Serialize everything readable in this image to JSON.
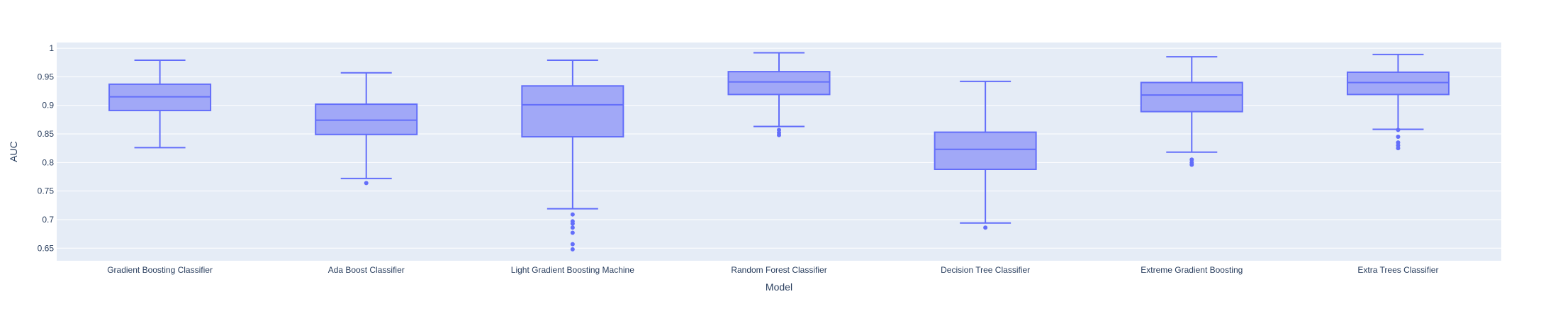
{
  "chart_data": {
    "type": "box",
    "title": "",
    "xlabel": "Model",
    "ylabel": "AUC",
    "ylim": [
      0.628,
      1.01
    ],
    "yticks": [
      0.65,
      0.7,
      0.75,
      0.8,
      0.85,
      0.9,
      0.95,
      1
    ],
    "ytick_labels": [
      "0.65",
      "0.7",
      "0.75",
      "0.8",
      "0.85",
      "0.9",
      "0.95",
      "1"
    ],
    "grid": true,
    "legend": "none",
    "colors": {
      "plot_bg": "#E5ECF6",
      "grid": "#FFFFFF",
      "box_line": "#636EFA",
      "box_fill": "#A1A8F7",
      "text": "#2A3F5F"
    },
    "categories": [
      "Gradient Boosting Classifier",
      "Ada Boost Classifier",
      "Light Gradient Boosting Machine",
      "Random Forest Classifier",
      "Decision Tree Classifier",
      "Extreme Gradient Boosting",
      "Extra Trees Classifier"
    ],
    "boxes": [
      {
        "name": "Gradient Boosting Classifier",
        "min": 0.826,
        "q1": 0.891,
        "median": 0.915,
        "q3": 0.937,
        "max": 0.979,
        "outliers": []
      },
      {
        "name": "Ada Boost Classifier",
        "min": 0.772,
        "q1": 0.849,
        "median": 0.874,
        "q3": 0.902,
        "max": 0.957,
        "outliers": [
          0.764
        ]
      },
      {
        "name": "Light Gradient Boosting Machine",
        "min": 0.719,
        "q1": 0.845,
        "median": 0.901,
        "q3": 0.934,
        "max": 0.979,
        "outliers": [
          0.709,
          0.697,
          0.693,
          0.686,
          0.677,
          0.657,
          0.648
        ]
      },
      {
        "name": "Random Forest Classifier",
        "min": 0.863,
        "q1": 0.919,
        "median": 0.941,
        "q3": 0.959,
        "max": 0.992,
        "outliers": [
          0.857,
          0.852,
          0.848
        ]
      },
      {
        "name": "Decision Tree Classifier",
        "min": 0.694,
        "q1": 0.788,
        "median": 0.823,
        "q3": 0.853,
        "max": 0.942,
        "outliers": [
          0.686
        ]
      },
      {
        "name": "Extreme Gradient Boosting",
        "min": 0.818,
        "q1": 0.889,
        "median": 0.918,
        "q3": 0.94,
        "max": 0.985,
        "outliers": [
          0.805,
          0.8,
          0.796
        ]
      },
      {
        "name": "Extra Trees Classifier",
        "min": 0.858,
        "q1": 0.919,
        "median": 0.94,
        "q3": 0.958,
        "max": 0.989,
        "outliers": [
          0.857,
          0.845,
          0.835,
          0.83,
          0.825
        ]
      }
    ]
  }
}
